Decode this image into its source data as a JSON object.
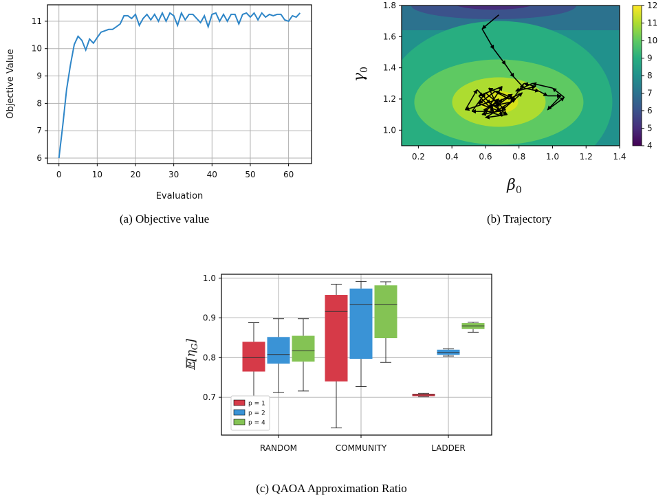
{
  "chart_data": [
    {
      "type": "line",
      "xlabel": "Evaluation",
      "ylabel": "Objective Value",
      "xlim": [
        -3,
        66
      ],
      "ylim": [
        5.8,
        11.6
      ],
      "xticks": [
        "0",
        "10",
        "20",
        "30",
        "40",
        "50",
        "60"
      ],
      "yticks": [
        "6",
        "7",
        "8",
        "9",
        "10",
        "11"
      ],
      "grid": true,
      "color": "#2e86c8",
      "x": [
        0,
        1,
        2,
        3,
        4,
        5,
        6,
        7,
        8,
        9,
        10,
        11,
        12,
        13,
        14,
        15,
        16,
        17,
        18,
        19,
        20,
        21,
        22,
        23,
        24,
        25,
        26,
        27,
        28,
        29,
        30,
        31,
        32,
        33,
        34,
        35,
        36,
        37,
        38,
        39,
        40,
        41,
        42,
        43,
        44,
        45,
        46,
        47,
        48,
        49,
        50,
        51,
        52,
        53,
        54,
        55,
        56,
        57,
        58,
        59,
        60,
        61,
        62,
        63
      ],
      "y": [
        6.0,
        7.2,
        8.5,
        9.4,
        10.15,
        10.45,
        10.3,
        9.95,
        10.35,
        10.2,
        10.4,
        10.6,
        10.65,
        10.7,
        10.7,
        10.8,
        10.9,
        11.2,
        11.2,
        11.1,
        11.25,
        10.85,
        11.1,
        11.25,
        11.05,
        11.25,
        11.0,
        11.3,
        11.0,
        11.3,
        11.2,
        10.85,
        11.3,
        11.05,
        11.25,
        11.25,
        11.1,
        10.95,
        11.2,
        10.8,
        11.25,
        11.3,
        11.0,
        11.25,
        11.0,
        11.25,
        11.25,
        10.9,
        11.25,
        11.3,
        11.15,
        11.3,
        11.05,
        11.3,
        11.15,
        11.25,
        11.2,
        11.25,
        11.25,
        11.05,
        11.0,
        11.2,
        11.15,
        11.3
      ],
      "caption": "(a) Objective value"
    },
    {
      "type": "heatmap",
      "xlabel": "β0",
      "ylabel": "γ0",
      "xlim": [
        0.1,
        1.4
      ],
      "ylim": [
        0.9,
        1.8
      ],
      "xticks": [
        "0.2",
        "0.4",
        "0.6",
        "0.8",
        "1.0",
        "1.2",
        "1.4"
      ],
      "yticks": [
        "1.0",
        "1.2",
        "1.4",
        "1.6",
        "1.8"
      ],
      "colorbar_ticks": [
        "4",
        "5",
        "6",
        "7",
        "8",
        "9",
        "10",
        "11",
        "12"
      ],
      "colormap": "viridis",
      "center": [
        0.68,
        1.18
      ],
      "trajectory": [
        [
          0.68,
          1.74
        ],
        [
          0.58,
          1.65
        ],
        [
          0.65,
          1.52
        ],
        [
          0.72,
          1.42
        ],
        [
          0.77,
          1.34
        ],
        [
          0.83,
          1.27
        ],
        [
          0.92,
          1.25
        ],
        [
          0.97,
          1.22
        ],
        [
          1.05,
          1.22
        ],
        [
          0.97,
          1.13
        ],
        [
          1.07,
          1.21
        ],
        [
          1.0,
          1.27
        ],
        [
          0.88,
          1.3
        ],
        [
          0.78,
          1.25
        ],
        [
          0.9,
          1.28
        ],
        [
          0.83,
          1.3
        ],
        [
          0.75,
          1.18
        ],
        [
          0.62,
          1.15
        ],
        [
          0.7,
          1.28
        ],
        [
          0.56,
          1.22
        ],
        [
          0.65,
          1.12
        ],
        [
          0.52,
          1.12
        ],
        [
          0.6,
          1.24
        ],
        [
          0.72,
          1.13
        ],
        [
          0.58,
          1.1
        ],
        [
          0.68,
          1.2
        ],
        [
          0.48,
          1.13
        ],
        [
          0.55,
          1.26
        ],
        [
          0.63,
          1.17
        ],
        [
          0.73,
          1.1
        ],
        [
          0.6,
          1.08
        ],
        [
          0.78,
          1.2
        ],
        [
          0.66,
          1.25
        ],
        [
          0.56,
          1.17
        ],
        [
          0.69,
          1.12
        ],
        [
          0.82,
          1.24
        ],
        [
          0.74,
          1.2
        ],
        [
          0.62,
          1.27
        ],
        [
          0.7,
          1.09
        ],
        [
          0.59,
          1.13
        ],
        [
          0.76,
          1.23
        ],
        [
          0.66,
          1.15
        ],
        [
          0.7,
          1.2
        ]
      ],
      "caption": "(b) Trajectory"
    },
    {
      "type": "box",
      "ylabel": "𝔼[ηG]",
      "ylim": [
        0.605,
        1.01
      ],
      "yticks": [
        "0.7",
        "0.8",
        "0.9",
        "1.0"
      ],
      "categories": [
        "RANDOM",
        "COMMUNITY",
        "LADDER"
      ],
      "grid": true,
      "legend_position": "lower-left",
      "series": [
        {
          "name": "p = 1",
          "color": "#d63a48",
          "boxes": [
            {
              "min": 0.7,
              "q1": 0.765,
              "median": 0.8,
              "q3": 0.84,
              "max": 0.888
            },
            {
              "min": 0.623,
              "q1": 0.74,
              "median": 0.916,
              "q3": 0.958,
              "max": 0.985
            },
            {
              "min": 0.702,
              "q1": 0.703,
              "median": 0.706,
              "q3": 0.709,
              "max": 0.71
            }
          ]
        },
        {
          "name": "p = 2",
          "color": "#3a93d6",
          "boxes": [
            {
              "min": 0.712,
              "q1": 0.785,
              "median": 0.808,
              "q3": 0.852,
              "max": 0.898
            },
            {
              "min": 0.727,
              "q1": 0.797,
              "median": 0.933,
              "q3": 0.974,
              "max": 0.992
            },
            {
              "min": 0.804,
              "q1": 0.807,
              "median": 0.813,
              "q3": 0.82,
              "max": 0.822
            }
          ]
        },
        {
          "name": "p = 4",
          "color": "#84c354",
          "boxes": [
            {
              "min": 0.716,
              "q1": 0.79,
              "median": 0.817,
              "q3": 0.855,
              "max": 0.898
            },
            {
              "min": 0.788,
              "q1": 0.849,
              "median": 0.933,
              "q3": 0.982,
              "max": 0.991
            },
            {
              "min": 0.864,
              "q1": 0.872,
              "median": 0.88,
              "q3": 0.887,
              "max": 0.889
            }
          ]
        }
      ],
      "caption": "(c) QAOA Approximation Ratio"
    }
  ]
}
